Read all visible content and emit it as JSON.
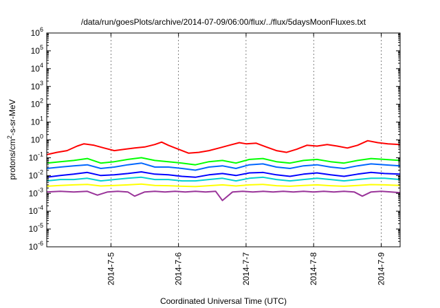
{
  "chart_data": {
    "type": "line",
    "title": "/data/run/goesPlots/archive/2014-07-09/06:00/flux/../flux/5daysMoonFluxes.txt",
    "xlabel": "Coordinated Universal Time (UTC)",
    "ylabel": "protons/cm²-s-sr-MeV",
    "ylabel_parts": {
      "prefix": "protons/cm",
      "sup": "2",
      "suffix": "-s-sr-MeV"
    },
    "x_range_days": [
      4.05,
      9.28
    ],
    "x_ticks": [
      {
        "label": "2014-7-5",
        "day": 5
      },
      {
        "label": "2014-7-6",
        "day": 6
      },
      {
        "label": "2014-7-7",
        "day": 7
      },
      {
        "label": "2014-7-8",
        "day": 8
      },
      {
        "label": "2014-7-9",
        "day": 9
      }
    ],
    "y_scale": "log",
    "ylim": [
      1e-06,
      1000000.0
    ],
    "y_ticks": [
      {
        "base": "10",
        "exp": "6",
        "value": 1000000.0
      },
      {
        "base": "10",
        "exp": "5",
        "value": 100000.0
      },
      {
        "base": "10",
        "exp": "4",
        "value": 10000.0
      },
      {
        "base": "10",
        "exp": "3",
        "value": 1000.0
      },
      {
        "base": "10",
        "exp": "2",
        "value": 100.0
      },
      {
        "base": "10",
        "exp": "1",
        "value": 10.0
      },
      {
        "base": "10",
        "exp": "0",
        "value": 1
      },
      {
        "base": "10",
        "exp": "-1",
        "value": 0.1
      },
      {
        "base": "10",
        "exp": "-2",
        "value": 0.01
      },
      {
        "base": "10",
        "exp": "-3",
        "value": 0.001
      },
      {
        "base": "10",
        "exp": "-4",
        "value": 0.0001
      },
      {
        "base": "10",
        "exp": "-5",
        "value": 1e-05
      },
      {
        "base": "10",
        "exp": "-6",
        "value": 1e-06
      }
    ],
    "grid": "vertical dotted at x ticks",
    "series": [
      {
        "color": "#ff0000",
        "x": [
          4.05,
          4.2,
          4.35,
          4.5,
          4.6,
          4.75,
          4.9,
          5.05,
          5.2,
          5.35,
          5.5,
          5.65,
          5.75,
          5.85,
          6.0,
          6.15,
          6.3,
          6.45,
          6.6,
          6.75,
          6.9,
          7.0,
          7.15,
          7.3,
          7.45,
          7.6,
          7.75,
          7.9,
          8.05,
          8.2,
          8.35,
          8.5,
          8.65,
          8.8,
          8.95,
          9.1,
          9.28
        ],
        "values": [
          0.15,
          0.2,
          0.25,
          0.45,
          0.6,
          0.5,
          0.35,
          0.25,
          0.3,
          0.35,
          0.4,
          0.55,
          0.75,
          0.5,
          0.3,
          0.18,
          0.2,
          0.25,
          0.35,
          0.5,
          0.7,
          0.6,
          0.65,
          0.4,
          0.25,
          0.2,
          0.3,
          0.5,
          0.45,
          0.55,
          0.45,
          0.35,
          0.5,
          0.9,
          0.7,
          0.6,
          0.55
        ]
      },
      {
        "color": "#00ff00",
        "x": [
          4.05,
          4.25,
          4.45,
          4.65,
          4.85,
          5.05,
          5.25,
          5.45,
          5.65,
          5.85,
          6.05,
          6.25,
          6.45,
          6.65,
          6.85,
          7.05,
          7.25,
          7.45,
          7.65,
          7.85,
          8.05,
          8.25,
          8.45,
          8.65,
          8.85,
          9.05,
          9.28
        ],
        "values": [
          0.05,
          0.06,
          0.07,
          0.09,
          0.05,
          0.06,
          0.08,
          0.1,
          0.07,
          0.06,
          0.05,
          0.04,
          0.06,
          0.07,
          0.05,
          0.08,
          0.09,
          0.06,
          0.05,
          0.07,
          0.08,
          0.06,
          0.05,
          0.07,
          0.09,
          0.08,
          0.07
        ]
      },
      {
        "color": "#0066ff",
        "x": [
          4.05,
          4.25,
          4.45,
          4.65,
          4.85,
          5.05,
          5.25,
          5.45,
          5.65,
          5.85,
          6.05,
          6.25,
          6.45,
          6.65,
          6.85,
          7.05,
          7.25,
          7.45,
          7.65,
          7.85,
          8.05,
          8.25,
          8.45,
          8.65,
          8.85,
          9.05,
          9.28
        ],
        "values": [
          0.025,
          0.03,
          0.035,
          0.04,
          0.025,
          0.03,
          0.04,
          0.05,
          0.03,
          0.03,
          0.025,
          0.02,
          0.03,
          0.035,
          0.025,
          0.04,
          0.045,
          0.03,
          0.025,
          0.035,
          0.04,
          0.03,
          0.025,
          0.035,
          0.045,
          0.04,
          0.035
        ]
      },
      {
        "color": "#0000ff",
        "x": [
          4.05,
          4.25,
          4.45,
          4.65,
          4.85,
          5.05,
          5.25,
          5.45,
          5.65,
          5.85,
          6.05,
          6.25,
          6.45,
          6.65,
          6.85,
          7.05,
          7.25,
          7.45,
          7.65,
          7.85,
          8.05,
          8.25,
          8.45,
          8.65,
          8.85,
          9.05,
          9.28
        ],
        "values": [
          0.008,
          0.01,
          0.012,
          0.015,
          0.01,
          0.011,
          0.013,
          0.016,
          0.012,
          0.011,
          0.009,
          0.008,
          0.011,
          0.013,
          0.01,
          0.014,
          0.015,
          0.011,
          0.009,
          0.012,
          0.014,
          0.011,
          0.009,
          0.012,
          0.015,
          0.013,
          0.012
        ]
      },
      {
        "color": "#00d0d0",
        "x": [
          4.05,
          4.25,
          4.45,
          4.65,
          4.85,
          5.05,
          5.25,
          5.45,
          5.65,
          5.85,
          6.05,
          6.25,
          6.45,
          6.65,
          6.85,
          7.05,
          7.25,
          7.45,
          7.65,
          7.85,
          8.05,
          8.25,
          8.45,
          8.65,
          8.85,
          9.05,
          9.28
        ],
        "values": [
          0.005,
          0.006,
          0.006,
          0.007,
          0.005,
          0.006,
          0.007,
          0.008,
          0.006,
          0.006,
          0.005,
          0.005,
          0.006,
          0.007,
          0.005,
          0.007,
          0.008,
          0.006,
          0.005,
          0.006,
          0.007,
          0.006,
          0.005,
          0.006,
          0.007,
          0.007,
          0.006
        ]
      },
      {
        "color": "#ffff00",
        "x": [
          4.05,
          4.25,
          4.45,
          4.65,
          4.85,
          5.05,
          5.25,
          5.45,
          5.65,
          5.85,
          6.05,
          6.25,
          6.45,
          6.65,
          6.85,
          7.05,
          7.25,
          7.45,
          7.65,
          7.85,
          8.05,
          8.25,
          8.45,
          8.65,
          8.85,
          9.05,
          9.28
        ],
        "values": [
          0.0025,
          0.0028,
          0.003,
          0.0032,
          0.0026,
          0.0028,
          0.003,
          0.0033,
          0.0028,
          0.0027,
          0.0025,
          0.0024,
          0.0027,
          0.003,
          0.0026,
          0.003,
          0.0032,
          0.0027,
          0.0025,
          0.0028,
          0.003,
          0.0027,
          0.0025,
          0.0028,
          0.0031,
          0.003,
          0.0028
        ]
      },
      {
        "color": "#993399",
        "x": [
          4.05,
          4.25,
          4.45,
          4.65,
          4.8,
          4.95,
          5.1,
          5.25,
          5.35,
          5.5,
          5.65,
          5.8,
          5.95,
          6.1,
          6.25,
          6.4,
          6.55,
          6.65,
          6.8,
          6.95,
          7.1,
          7.25,
          7.4,
          7.55,
          7.7,
          7.85,
          8.0,
          8.15,
          8.3,
          8.45,
          8.6,
          8.72,
          8.85,
          9.0,
          9.15,
          9.28
        ],
        "values": [
          0.0012,
          0.0013,
          0.0012,
          0.0013,
          0.0008,
          0.0012,
          0.0013,
          0.0012,
          0.0007,
          0.0012,
          0.0013,
          0.0012,
          0.0013,
          0.0012,
          0.0013,
          0.0012,
          0.0013,
          0.0004,
          0.0012,
          0.0013,
          0.0012,
          0.0013,
          0.0012,
          0.0013,
          0.0012,
          0.0013,
          0.0012,
          0.0013,
          0.0012,
          0.0013,
          0.0012,
          0.0007,
          0.0012,
          0.0013,
          0.0012,
          0.0011
        ]
      }
    ]
  }
}
